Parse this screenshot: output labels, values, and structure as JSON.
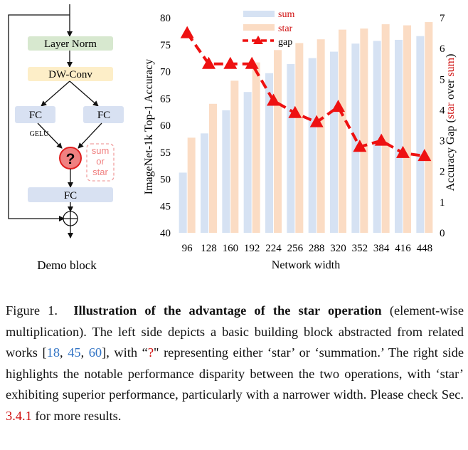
{
  "block": {
    "layer_norm": "Layer Norm",
    "dwconv": "DW-Conv",
    "fc": "FC",
    "gelu": "GELU",
    "question": "?",
    "choice_sum": "sum",
    "choice_or": "or",
    "choice_star": "star",
    "plus": "+",
    "title": "Demo block"
  },
  "colors": {
    "sum_bar": "#d6e2f3",
    "star_bar": "#fbdcc4",
    "gap_line": "#ee1111",
    "link_blue": "#2f72c4",
    "red": "#d01010"
  },
  "chart_data": {
    "type": "bar",
    "title": "",
    "categories": [
      "96",
      "128",
      "160",
      "192",
      "224",
      "256",
      "288",
      "320",
      "352",
      "384",
      "416",
      "448"
    ],
    "series": [
      {
        "name": "sum",
        "values": [
          51.2,
          58.5,
          62.8,
          66.2,
          69.7,
          71.4,
          72.5,
          73.7,
          75.2,
          75.7,
          75.9,
          76.6
        ]
      },
      {
        "name": "star",
        "values": [
          57.7,
          64.0,
          68.3,
          71.7,
          74.0,
          75.3,
          76.0,
          77.8,
          78.0,
          78.8,
          78.6,
          79.2
        ]
      }
    ],
    "line_series": {
      "name": "gap",
      "axis": "right",
      "values": [
        6.5,
        5.5,
        5.5,
        5.5,
        4.3,
        3.9,
        3.6,
        4.1,
        2.8,
        3.0,
        2.6,
        2.5
      ]
    },
    "xlabel": "Network width",
    "ylabel": "ImageNet-1k Top-1 Accuracy",
    "ylim": [
      40,
      80
    ],
    "yticks": [
      "40",
      "45",
      "50",
      "55",
      "60",
      "65",
      "70",
      "75",
      "80"
    ],
    "y2label": {
      "prefix": "Accuracy Gap (",
      "star": "star",
      "over": " over ",
      "sum": "sum",
      "suffix": ")"
    },
    "y2lim": [
      0,
      7
    ],
    "y2ticks": [
      "0",
      "1",
      "2",
      "3",
      "4",
      "5",
      "6",
      "7"
    ],
    "legend": [
      "sum",
      "star",
      "gap"
    ],
    "legend_position": "top"
  },
  "caption": {
    "label": "Figure 1.",
    "title": "Illustration of the advantage of the star operation",
    "t1": "(element-wise multiplication). The left side depicts a basic building block abstracted from related works [",
    "ref1": "18",
    "sep1": ", ",
    "ref2": "45",
    "sep2": ", ",
    "ref3": "60",
    "t2": "], with “",
    "qmark": "?",
    "t3": "\" representing either ‘star’ or ‘summation.’ The right side highlights the notable performance disparity between the two operations, with ‘star’ exhibiting superior performance, particularly with a narrower width. Please check Sec. ",
    "sec": "3.4.1",
    "t4": " for more results."
  }
}
